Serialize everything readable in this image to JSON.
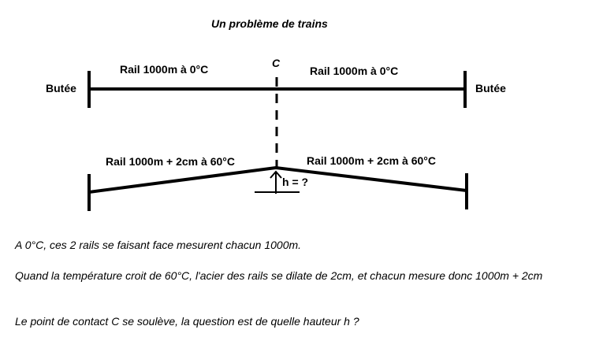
{
  "title": "Un problème de trains",
  "diagram": {
    "point_label": "C",
    "stop_left": "Butée",
    "stop_right": "Butée",
    "rail_cold_left": "Rail 1000m à 0°C",
    "rail_cold_right": "Rail 1000m à 0°C",
    "rail_hot_left": "Rail 1000m + 2cm à 60°C",
    "rail_hot_right": "Rail 1000m + 2cm à 60°C",
    "height_label": "h = ?"
  },
  "text": {
    "p1": "A 0°C, ces 2 rails se faisant face mesurent chacun 1000m.",
    "p2": "Quand la température croit de 60°C, l'acier des rails se dilate de 2cm, et chacun mesure donc 1000m + 2cm",
    "p3": "Le point de contact C se soulève, la question est de quelle hauteur h  ?"
  }
}
